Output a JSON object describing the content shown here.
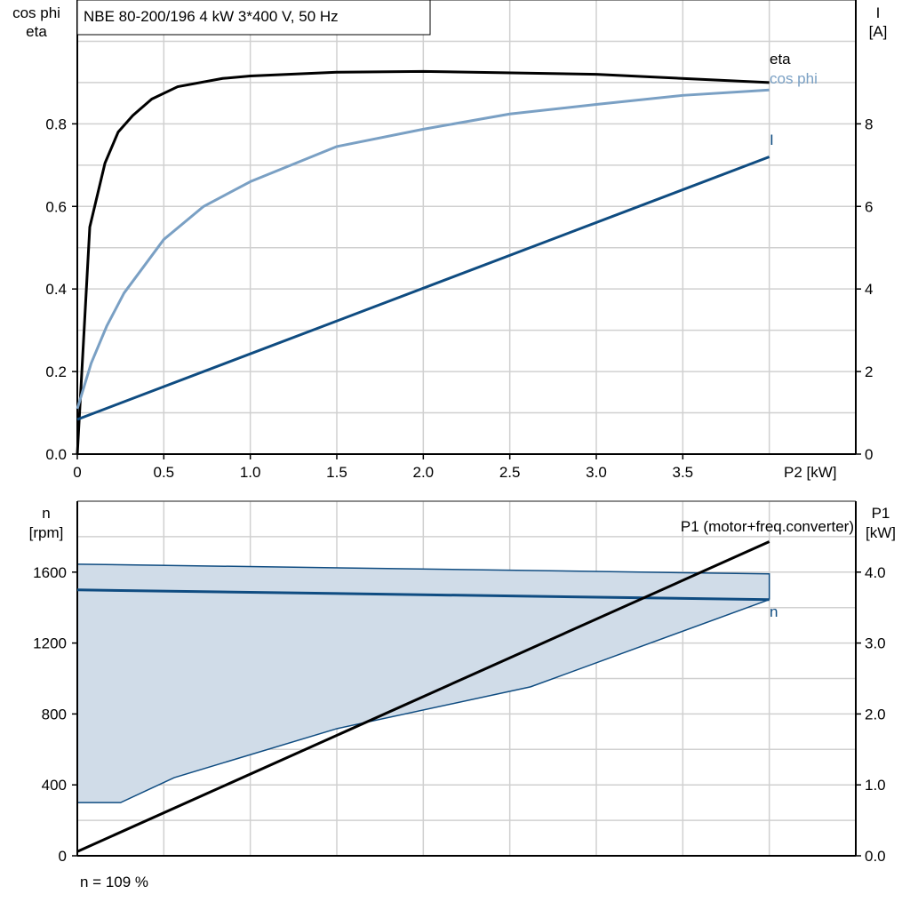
{
  "chart_data": [
    {
      "type": "line",
      "title": "NBE 80-200/196   4 kW   3*400 V, 50 Hz",
      "xlabel": "P2 [kW]",
      "ylabel": [
        "cos phi",
        "eta"
      ],
      "y2label": [
        "I",
        "[A]"
      ],
      "xlim": [
        0,
        4.5
      ],
      "ylim": [
        0,
        1.1
      ],
      "y2lim": [
        0,
        11
      ],
      "xticks": [
        "0",
        "0.5",
        "1.0",
        "1.5",
        "2.0",
        "2.5",
        "3.0",
        "3.5"
      ],
      "yticks": [
        "0.0",
        "0.2",
        "0.4",
        "0.6",
        "0.8"
      ],
      "y2ticks": [
        "0",
        "2",
        "4",
        "6",
        "8"
      ],
      "grid": true,
      "series": [
        {
          "name": "eta",
          "axis": "left",
          "color": "#000000",
          "x": [
            0,
            0.072,
            0.16,
            0.236,
            0.32,
            0.43,
            0.58,
            0.84,
            1.0,
            1.5,
            2.0,
            3.0,
            4.0
          ],
          "y": [
            0,
            0.55,
            0.705,
            0.78,
            0.82,
            0.86,
            0.89,
            0.91,
            0.916,
            0.925,
            0.927,
            0.92,
            0.9
          ]
        },
        {
          "name": "cos phi",
          "axis": "left",
          "color": "#7aa0c4",
          "x": [
            0,
            0.08,
            0.17,
            0.27,
            0.5,
            0.73,
            1.0,
            1.5,
            2.0,
            2.5,
            3.0,
            3.5,
            4.0
          ],
          "y": [
            0.11,
            0.22,
            0.31,
            0.39,
            0.52,
            0.6,
            0.66,
            0.745,
            0.787,
            0.824,
            0.847,
            0.869,
            0.882
          ]
        },
        {
          "name": "I",
          "axis": "right",
          "color": "#0f4c81",
          "x": [
            0,
            4.0
          ],
          "y": [
            0.84,
            7.2
          ]
        }
      ]
    },
    {
      "type": "line",
      "ylabel": [
        "n",
        "[rpm]"
      ],
      "y2label": [
        "P1",
        "[kW]"
      ],
      "xlim": [
        0,
        4.5
      ],
      "ylim": [
        0,
        2000
      ],
      "y2lim": [
        0,
        5
      ],
      "yticks": [
        "0",
        "400",
        "800",
        "1200",
        "1600"
      ],
      "y2ticks": [
        "0.0",
        "1.0",
        "2.0",
        "3.0",
        "4.0"
      ],
      "grid": true,
      "range_band": {
        "color": "#d0dce8",
        "edge_color": "#0f4c81",
        "upper": {
          "x": [
            0,
            4.0,
            4.0
          ],
          "y": [
            1645,
            1590,
            1445
          ]
        },
        "lower": {
          "x": [
            0,
            0.25,
            0.56,
            1.5,
            2.62,
            4.0
          ],
          "y": [
            300,
            300,
            441,
            717,
            953,
            1445
          ]
        }
      },
      "series": [
        {
          "name": "n",
          "axis": "left",
          "color": "#0f4c81",
          "x": [
            0,
            4.0
          ],
          "y": [
            1500,
            1445
          ]
        },
        {
          "name": "P1 (motor+freq.converter)",
          "axis": "right",
          "color": "#000000",
          "x": [
            0,
            4.0
          ],
          "y": [
            0.06,
            4.43
          ]
        }
      ],
      "annotation": "n = 109 %"
    }
  ]
}
